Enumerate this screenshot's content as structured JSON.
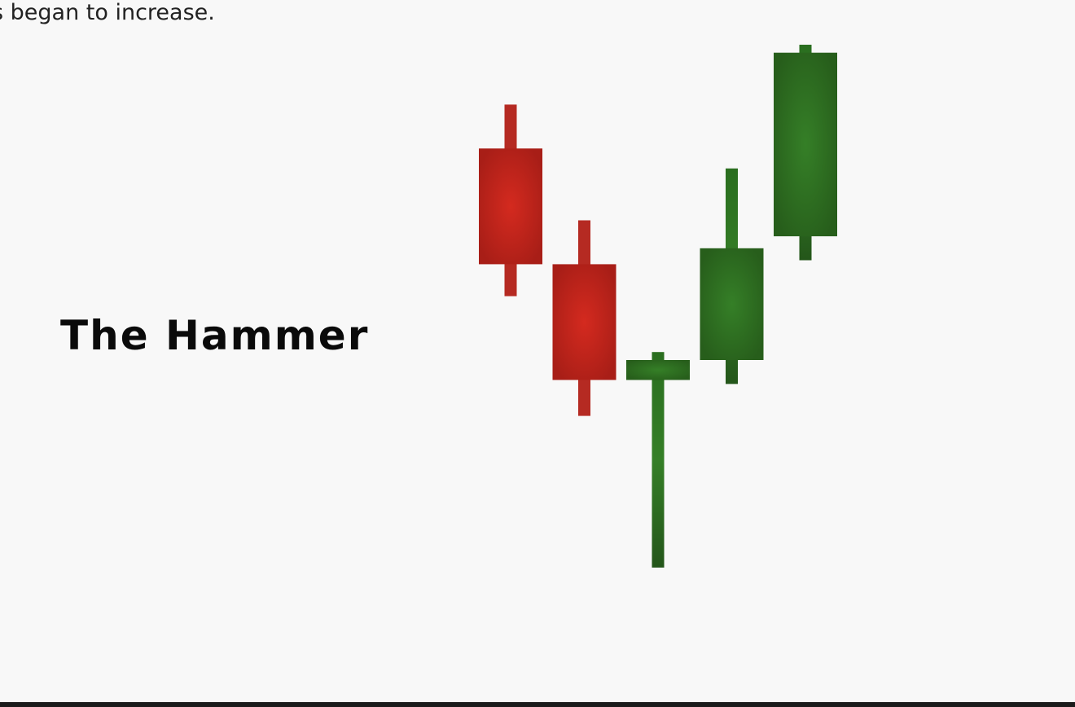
{
  "page": {
    "intro_text": "s began to increase."
  },
  "chart_data": {
    "type": "candlestick",
    "title": "The Hammer",
    "candles": [
      {
        "direction": "down",
        "open": 73,
        "close": 44,
        "high": 84,
        "low": 36,
        "color": "#c42a1e"
      },
      {
        "direction": "down",
        "open": 44,
        "close": 15,
        "high": 55,
        "low": 6,
        "color": "#c42a1e"
      },
      {
        "direction": "up",
        "open": 15,
        "close": 20,
        "high": 22,
        "low": -32,
        "color": "#2e7a23"
      },
      {
        "direction": "up",
        "open": 20,
        "close": 48,
        "high": 68,
        "low": 14,
        "color": "#2a6e1f"
      },
      {
        "direction": "up",
        "open": 51,
        "close": 97,
        "high": 99,
        "low": 45,
        "color": "#2e7a23"
      }
    ],
    "grid": false,
    "colors": {
      "bearish": "#c42a1e",
      "bullish": "#2e7a23"
    }
  }
}
